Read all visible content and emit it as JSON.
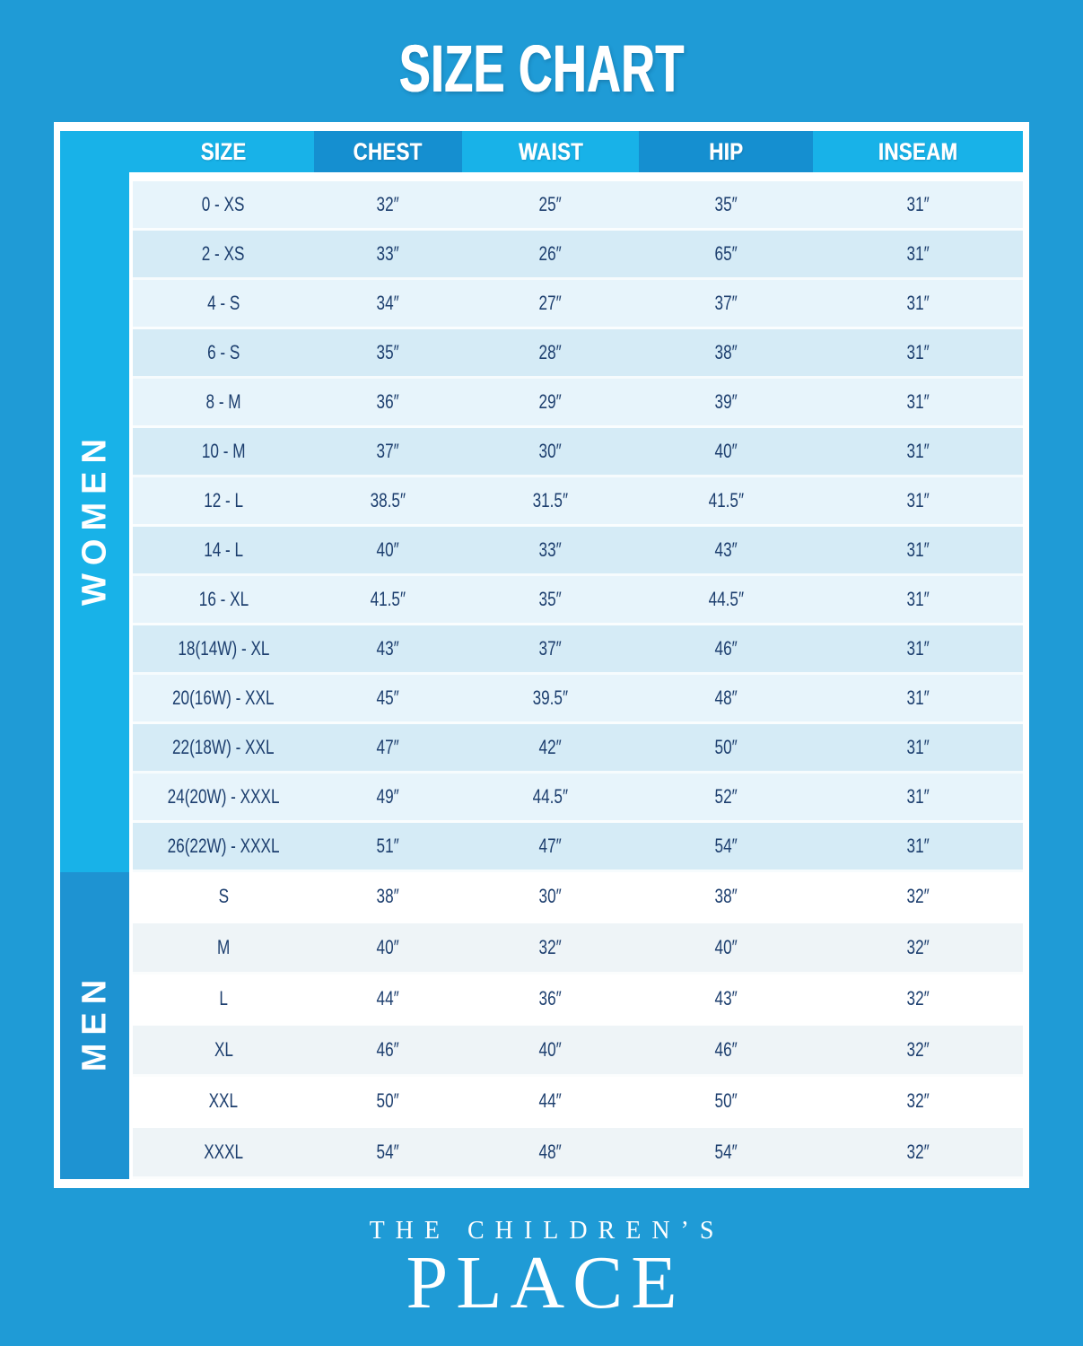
{
  "title": "SIZE CHART",
  "brand": {
    "line1": "THE CHILDREN’S",
    "line2": "PLACE"
  },
  "colors": {
    "background": "#1F9BD6",
    "header_light": "#18B2E8",
    "header_dark": "#158FD0",
    "sidebar_women": "#18B2E8",
    "sidebar_men": "#1E93D2",
    "row_women_light": "#E7F4FB",
    "row_women_dark": "#D5EBF6",
    "row_men_light": "#FFFFFF",
    "row_men_dark": "#EEF4F7",
    "text_navy": "#1C3E6E",
    "frame_white": "#FFFFFF"
  },
  "chart_data": {
    "type": "table",
    "title": "SIZE CHART",
    "columns": [
      "SIZE",
      "CHEST",
      "WAIST",
      "HIP",
      "INSEAM"
    ],
    "sections": [
      {
        "group": "WOMEN",
        "rows": [
          [
            "0 - XS",
            "32″",
            "25″",
            "35″",
            "31″"
          ],
          [
            "2 - XS",
            "33″",
            "26″",
            "65″",
            "31″"
          ],
          [
            "4 - S",
            "34″",
            "27″",
            "37″",
            "31″"
          ],
          [
            "6 - S",
            "35″",
            "28″",
            "38″",
            "31″"
          ],
          [
            "8 - M",
            "36″",
            "29″",
            "39″",
            "31″"
          ],
          [
            "10 - M",
            "37″",
            "30″",
            "40″",
            "31″"
          ],
          [
            "12 - L",
            "38.5″",
            "31.5″",
            "41.5″",
            "31″"
          ],
          [
            "14 - L",
            "40″",
            "33″",
            "43″",
            "31″"
          ],
          [
            "16 - XL",
            "41.5″",
            "35″",
            "44.5″",
            "31″"
          ],
          [
            "18(14W) - XL",
            "43″",
            "37″",
            "46″",
            "31″"
          ],
          [
            "20(16W) - XXL",
            "45″",
            "39.5″",
            "48″",
            "31″"
          ],
          [
            "22(18W) - XXL",
            "47″",
            "42″",
            "50″",
            "31″"
          ],
          [
            "24(20W) - XXXL",
            "49″",
            "44.5″",
            "52″",
            "31″"
          ],
          [
            "26(22W) - XXXL",
            "51″",
            "47″",
            "54″",
            "31″"
          ]
        ]
      },
      {
        "group": "MEN",
        "rows": [
          [
            "S",
            "38″",
            "30″",
            "38″",
            "32″"
          ],
          [
            "M",
            "40″",
            "32″",
            "40″",
            "32″"
          ],
          [
            "L",
            "44″",
            "36″",
            "43″",
            "32″"
          ],
          [
            "XL",
            "46″",
            "40″",
            "46″",
            "32″"
          ],
          [
            "XXL",
            "50″",
            "44″",
            "50″",
            "32″"
          ],
          [
            "XXXL",
            "54″",
            "48″",
            "54″",
            "32″"
          ]
        ]
      }
    ]
  }
}
